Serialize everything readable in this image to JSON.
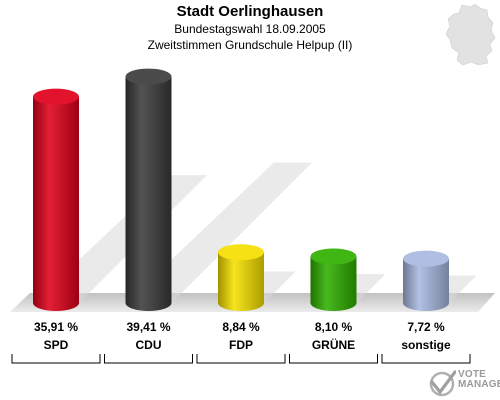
{
  "header": {
    "title": "Stadt Oerlinghausen",
    "subtitle1": "Bundestagswahl 18.09.2005",
    "subtitle2": "Zweitstimmen Grundschule Helpup (II)"
  },
  "chart_data": {
    "type": "bar",
    "title": "Stadt Oerlinghausen",
    "subtitle": "Bundestagswahl 18.09.2005 / Zweitstimmen Grundschule Helpup (II)",
    "categories": [
      "SPD",
      "CDU",
      "FDP",
      "GRÜNE",
      "sonstige"
    ],
    "values": [
      35.91,
      39.41,
      8.84,
      8.1,
      7.72
    ],
    "value_labels": [
      "35,91 %",
      "39,41 %",
      "8,84 %",
      "8,10 %",
      "7,72 %"
    ],
    "colors": [
      "#e0001b",
      "#3b3b3b",
      "#f5e000",
      "#2fb000",
      "#a8b8e0"
    ],
    "ylim": [
      0,
      42
    ],
    "xlabel": "",
    "ylabel": "",
    "grid": false,
    "legend": "none"
  },
  "logo": {
    "line1": "VOTE",
    "line2": "MANAGER",
    "icon": "vote-manager-check-icon"
  },
  "map": {
    "icon": "germany-map-icon",
    "color": "#e0e0e0"
  }
}
